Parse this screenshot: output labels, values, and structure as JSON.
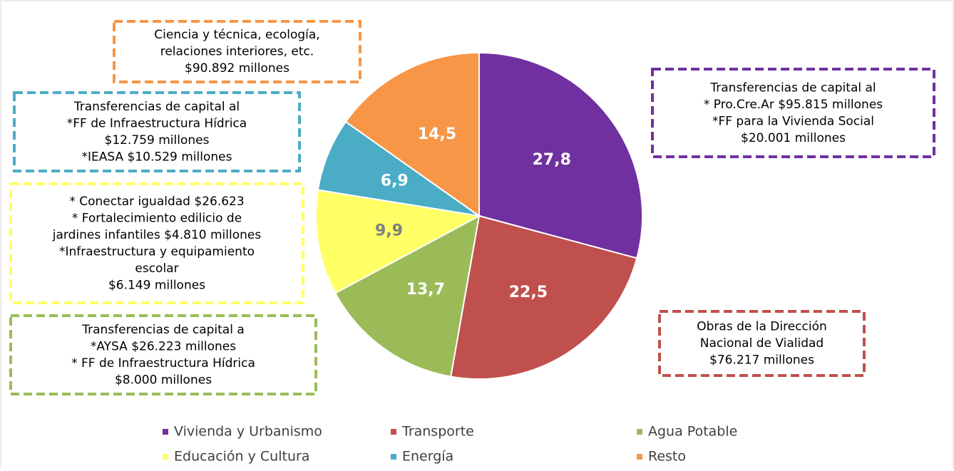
{
  "chart_data": {
    "type": "pie",
    "categories": [
      "Vivienda y Urbanismo",
      "Transporte",
      "Agua Potable",
      "Educación y Cultura",
      "Energía",
      "Resto"
    ],
    "values": [
      27.8,
      22.5,
      13.7,
      9.9,
      6.9,
      14.5
    ],
    "value_labels": [
      "27,8",
      "22,5",
      "13,7",
      "9,9",
      "6,9",
      "14,5"
    ],
    "colors": [
      "#7030a0",
      "#c0504d",
      "#9bbb59",
      "#ffff66",
      "#4bacc6",
      "#f79646"
    ],
    "label_colors": [
      "#ffffff",
      "#ffffff",
      "#ffffff",
      "#7f7f7f",
      "#ffffff",
      "#ffffff"
    ],
    "annotations": [
      {
        "color": "#f79646",
        "lines": [
          "Ciencia y técnica, ecología,",
          "relaciones interiores, etc.",
          "$90.892  millones"
        ]
      },
      {
        "color": "#4bacc6",
        "lines": [
          "Transferencias de capital al",
          "*FF de Infraestructura Hídrica",
          "$12.759 millones",
          "*IEASA $10.529 millones"
        ]
      },
      {
        "color": "#ffff66",
        "lines": [
          "* Conectar igualdad $26.623",
          "* Fortalecimiento edilicio de",
          "jardines infantiles $4.810 millones",
          "*Infraestructura y equipamiento",
          "escolar",
          "$6.149 millones"
        ]
      },
      {
        "color": "#9bbb59",
        "lines": [
          "Transferencias de capital a",
          "*AYSA  $26.223 millones",
          "* FF de Infraestructura Hídrica",
          "$8.000  millones"
        ]
      },
      {
        "color": "#7030a0",
        "lines": [
          "Transferencias de capital al",
          "* Pro.Cre.Ar   $95.815 millones",
          "*FF para la Vivienda Social",
          "$20.001 millones"
        ]
      },
      {
        "color": "#c0504d",
        "lines": [
          "Obras de la Dirección",
          "Nacional de Vialidad",
          "$76.217 millones"
        ]
      }
    ]
  }
}
